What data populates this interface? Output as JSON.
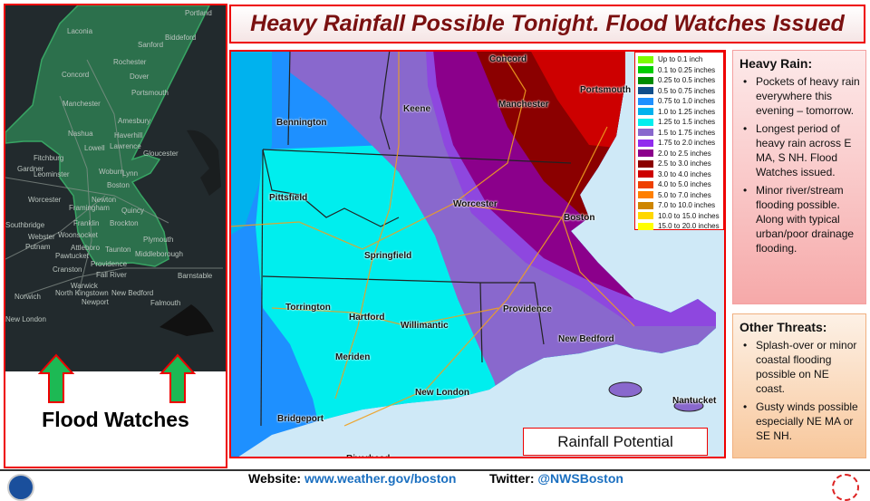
{
  "title": "Heavy Rainfall Possible Tonight.  Flood Watches Issued",
  "left_panel": {
    "label": "Flood Watches",
    "cities": [
      "Laconia",
      "Portland",
      "Biddeford",
      "Sanford",
      "Rochester",
      "Concord",
      "Dover",
      "Portsmouth",
      "Manchester",
      "Amesbury",
      "Nashua",
      "Haverhill",
      "Lowell",
      "Lawrence",
      "Gloucester",
      "Fitchburg",
      "Gardner",
      "Leominster",
      "Woburn",
      "Lynn",
      "Boston",
      "Worcester",
      "Newton",
      "Framingham",
      "Quincy",
      "Southbridge",
      "Franklin",
      "Brockton",
      "Webster",
      "Woonsocket",
      "Plymouth",
      "Putnam",
      "Attleboro",
      "Taunton",
      "Pawtucket",
      "Middleborough",
      "Providence",
      "Cranston",
      "Fall River",
      "Barnstable",
      "Warwick",
      "North Kingstown",
      "New Bedford",
      "Norwich",
      "Newport",
      "Falmouth",
      "New London"
    ]
  },
  "map": {
    "cities": [
      "Concord",
      "Portsmouth",
      "Manchester",
      "Keene",
      "Bennington",
      "Pittsfield",
      "Worcester",
      "Boston",
      "Springfield",
      "Torrington",
      "Hartford",
      "Willimantic",
      "Providence",
      "New Bedford",
      "Meriden",
      "New London",
      "Bridgeport",
      "Nantucket",
      "Riverhead"
    ],
    "caption": "Rainfall Potential"
  },
  "legend": [
    {
      "label": "Up to 0.1 inch",
      "color": "#7cfc00"
    },
    {
      "label": "0.1 to 0.25 inches",
      "color": "#00cd00"
    },
    {
      "label": "0.25 to 0.5 inches",
      "color": "#008b00"
    },
    {
      "label": "0.5 to 0.75 inches",
      "color": "#104e8b"
    },
    {
      "label": "0.75 to 1.0 inches",
      "color": "#1e90ff"
    },
    {
      "label": "1.0 to 1.25 inches",
      "color": "#00b2ee"
    },
    {
      "label": "1.25 to 1.5 inches",
      "color": "#00eeee"
    },
    {
      "label": "1.5 to 1.75 inches",
      "color": "#8968cd"
    },
    {
      "label": "1.75 to 2.0 inches",
      "color": "#912cee"
    },
    {
      "label": "2.0 to 2.5 inches",
      "color": "#8b008b"
    },
    {
      "label": "2.5 to 3.0 inches",
      "color": "#8b0000"
    },
    {
      "label": "3.0 to 4.0 inches",
      "color": "#cd0000"
    },
    {
      "label": "4.0 to 5.0 inches",
      "color": "#ee4000"
    },
    {
      "label": "5.0 to 7.0 inches",
      "color": "#ff7f00"
    },
    {
      "label": "7.0 to 10.0 inches",
      "color": "#cd8500"
    },
    {
      "label": "10.0 to 15.0 inches",
      "color": "#ffd700"
    },
    {
      "label": "15.0 to 20.0 inches",
      "color": "#ffff00"
    }
  ],
  "heavy_rain": {
    "heading": "Heavy Rain:",
    "bullets": [
      "Pockets of heavy rain everywhere this evening – tomorrow.",
      "Longest period of heavy rain across E MA, S NH.  Flood Watches issued.",
      "Minor river/stream flooding possible. Along with typical urban/poor drainage flooding."
    ]
  },
  "other_threats": {
    "heading": "Other Threats:",
    "bullets": [
      "Splash-over or minor coastal flooding possible on NE coast.",
      "Gusty winds possible especially NE MA or SE NH."
    ]
  },
  "footer": {
    "website_label": "Website:",
    "website": "www.weather.gov/boston",
    "twitter_label": "Twitter:",
    "twitter": "@NWSBoston"
  }
}
